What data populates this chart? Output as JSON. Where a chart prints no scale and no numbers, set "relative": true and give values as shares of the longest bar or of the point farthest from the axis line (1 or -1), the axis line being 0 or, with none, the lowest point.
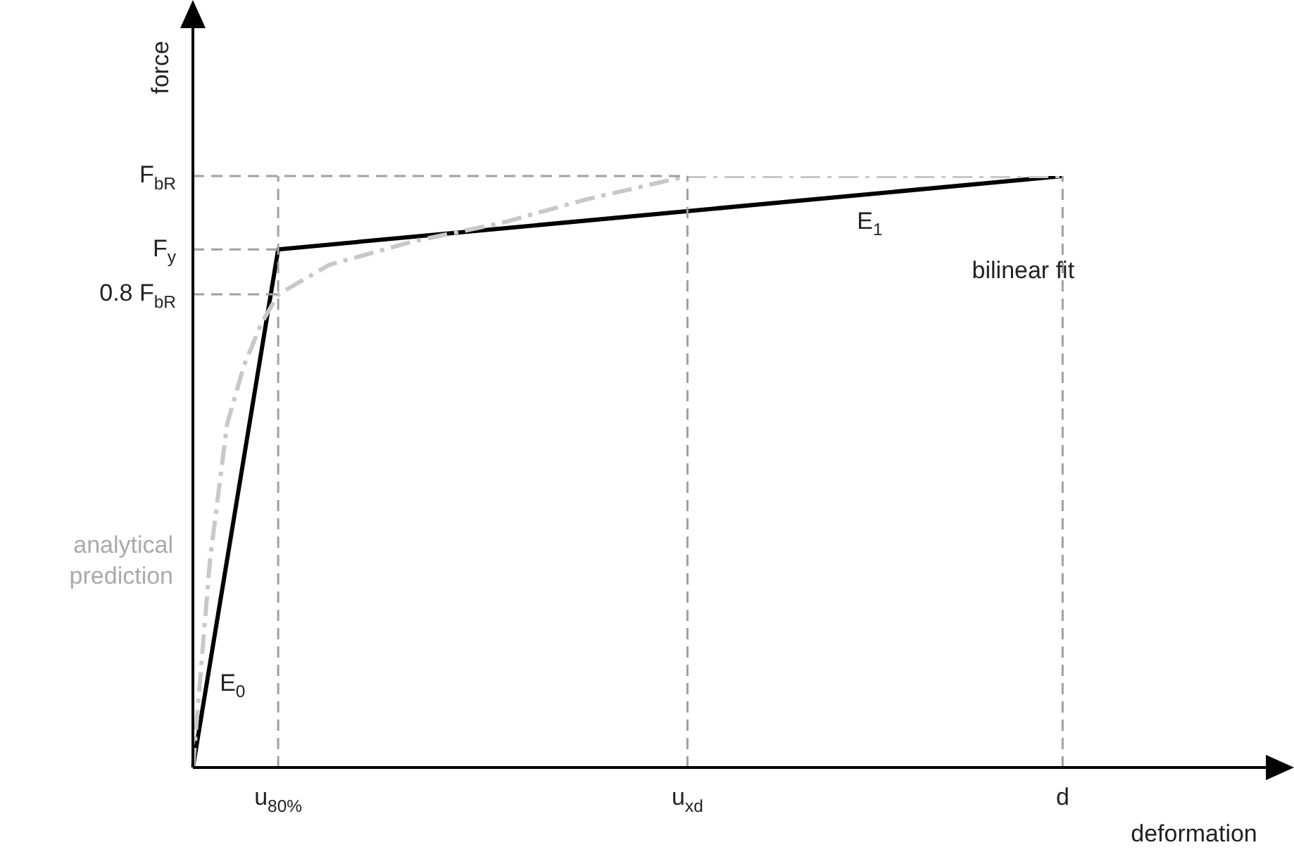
{
  "chart_data": {
    "type": "line",
    "relative": true,
    "xlabel": "deformation",
    "ylabel": "force",
    "categories": [
      null,
      null,
      null,
      null,
      null,
      "u$_{80%}$",
      null,
      null,
      null,
      null,
      null,
      null,
      null,
      null,
      null,
      null,
      null,
      null,
      null,
      null,
      null,
      null,
      null,
      null,
      null,
      null,
      null,
      null,
      null,
      "u$_{xd}$",
      null,
      null,
      null,
      null,
      null,
      null,
      null,
      null,
      null,
      null,
      null,
      null,
      null,
      null,
      null,
      null,
      null,
      null,
      null,
      null,
      null,
      "d",
      null,
      null,
      null,
      null,
      null,
      null,
      null,
      null,
      null,
      null,
      null,
      null
    ],
    "series": [
      {
        "name": "bilinear fit",
        "color": "#000000",
        "line_style": "solid",
        "values": [
          0,
          null,
          null,
          null,
          null,
          0.876,
          null,
          null,
          null,
          null,
          null,
          null,
          null,
          null,
          null,
          null,
          null,
          null,
          null,
          null,
          null,
          null,
          null,
          null,
          null,
          null,
          null,
          null,
          null,
          null,
          null,
          null,
          null,
          null,
          null,
          null,
          null,
          null,
          null,
          null,
          null,
          null,
          null,
          null,
          null,
          null,
          null,
          null,
          null,
          null,
          null,
          1,
          null,
          null,
          null,
          null,
          null,
          null,
          null,
          null,
          null,
          null,
          null,
          null
        ]
      },
      {
        "name": "analytical prediction",
        "color": "#c8c8c8",
        "line_style": "dashed",
        "values": [
          0,
          0.35,
          0.58,
          0.68,
          0.75,
          0.8,
          null,
          null,
          0.85,
          null,
          null,
          null,
          null,
          0.89,
          null,
          null,
          null,
          null,
          0.92,
          null,
          null,
          null,
          null,
          0.96,
          null,
          null,
          null,
          null,
          null,
          1,
          null,
          null,
          null,
          null,
          null,
          null,
          null,
          null,
          null,
          null,
          null,
          null,
          null,
          null,
          null,
          null,
          null,
          null,
          null,
          null,
          null,
          1,
          null,
          null,
          null,
          null,
          null,
          null,
          null,
          null,
          null,
          null,
          null,
          null
        ]
      }
    ],
    "ref_lines": [
      {
        "axis": "y",
        "value": 1,
        "label": "F$_{bR}$",
        "color": "#a0a0a0",
        "line_style": "dashed"
      },
      {
        "axis": "y",
        "value": 0.876,
        "label": "F$_{y}$",
        "color": "#a0a0a0",
        "line_style": "dashed"
      },
      {
        "axis": "y",
        "value": 0.8,
        "label": "0.8 F$_{bR}$",
        "color": "#a0a0a0",
        "line_style": "dashed"
      },
      {
        "axis": "x",
        "value": "u$_{80%}$",
        "color": "#a0a0a0",
        "line_style": "dashed"
      },
      {
        "axis": "x",
        "value": "u$_{xd}$",
        "color": "#a0a0a0",
        "line_style": "dashed"
      },
      {
        "axis": "x",
        "value": "d",
        "color": "#a0a0a0",
        "line_style": "dashed"
      }
    ],
    "annotations": [
      "E$_{0}$",
      "E$_{1}$"
    ],
    "marker": "none",
    "grid": false,
    "legend": false
  }
}
